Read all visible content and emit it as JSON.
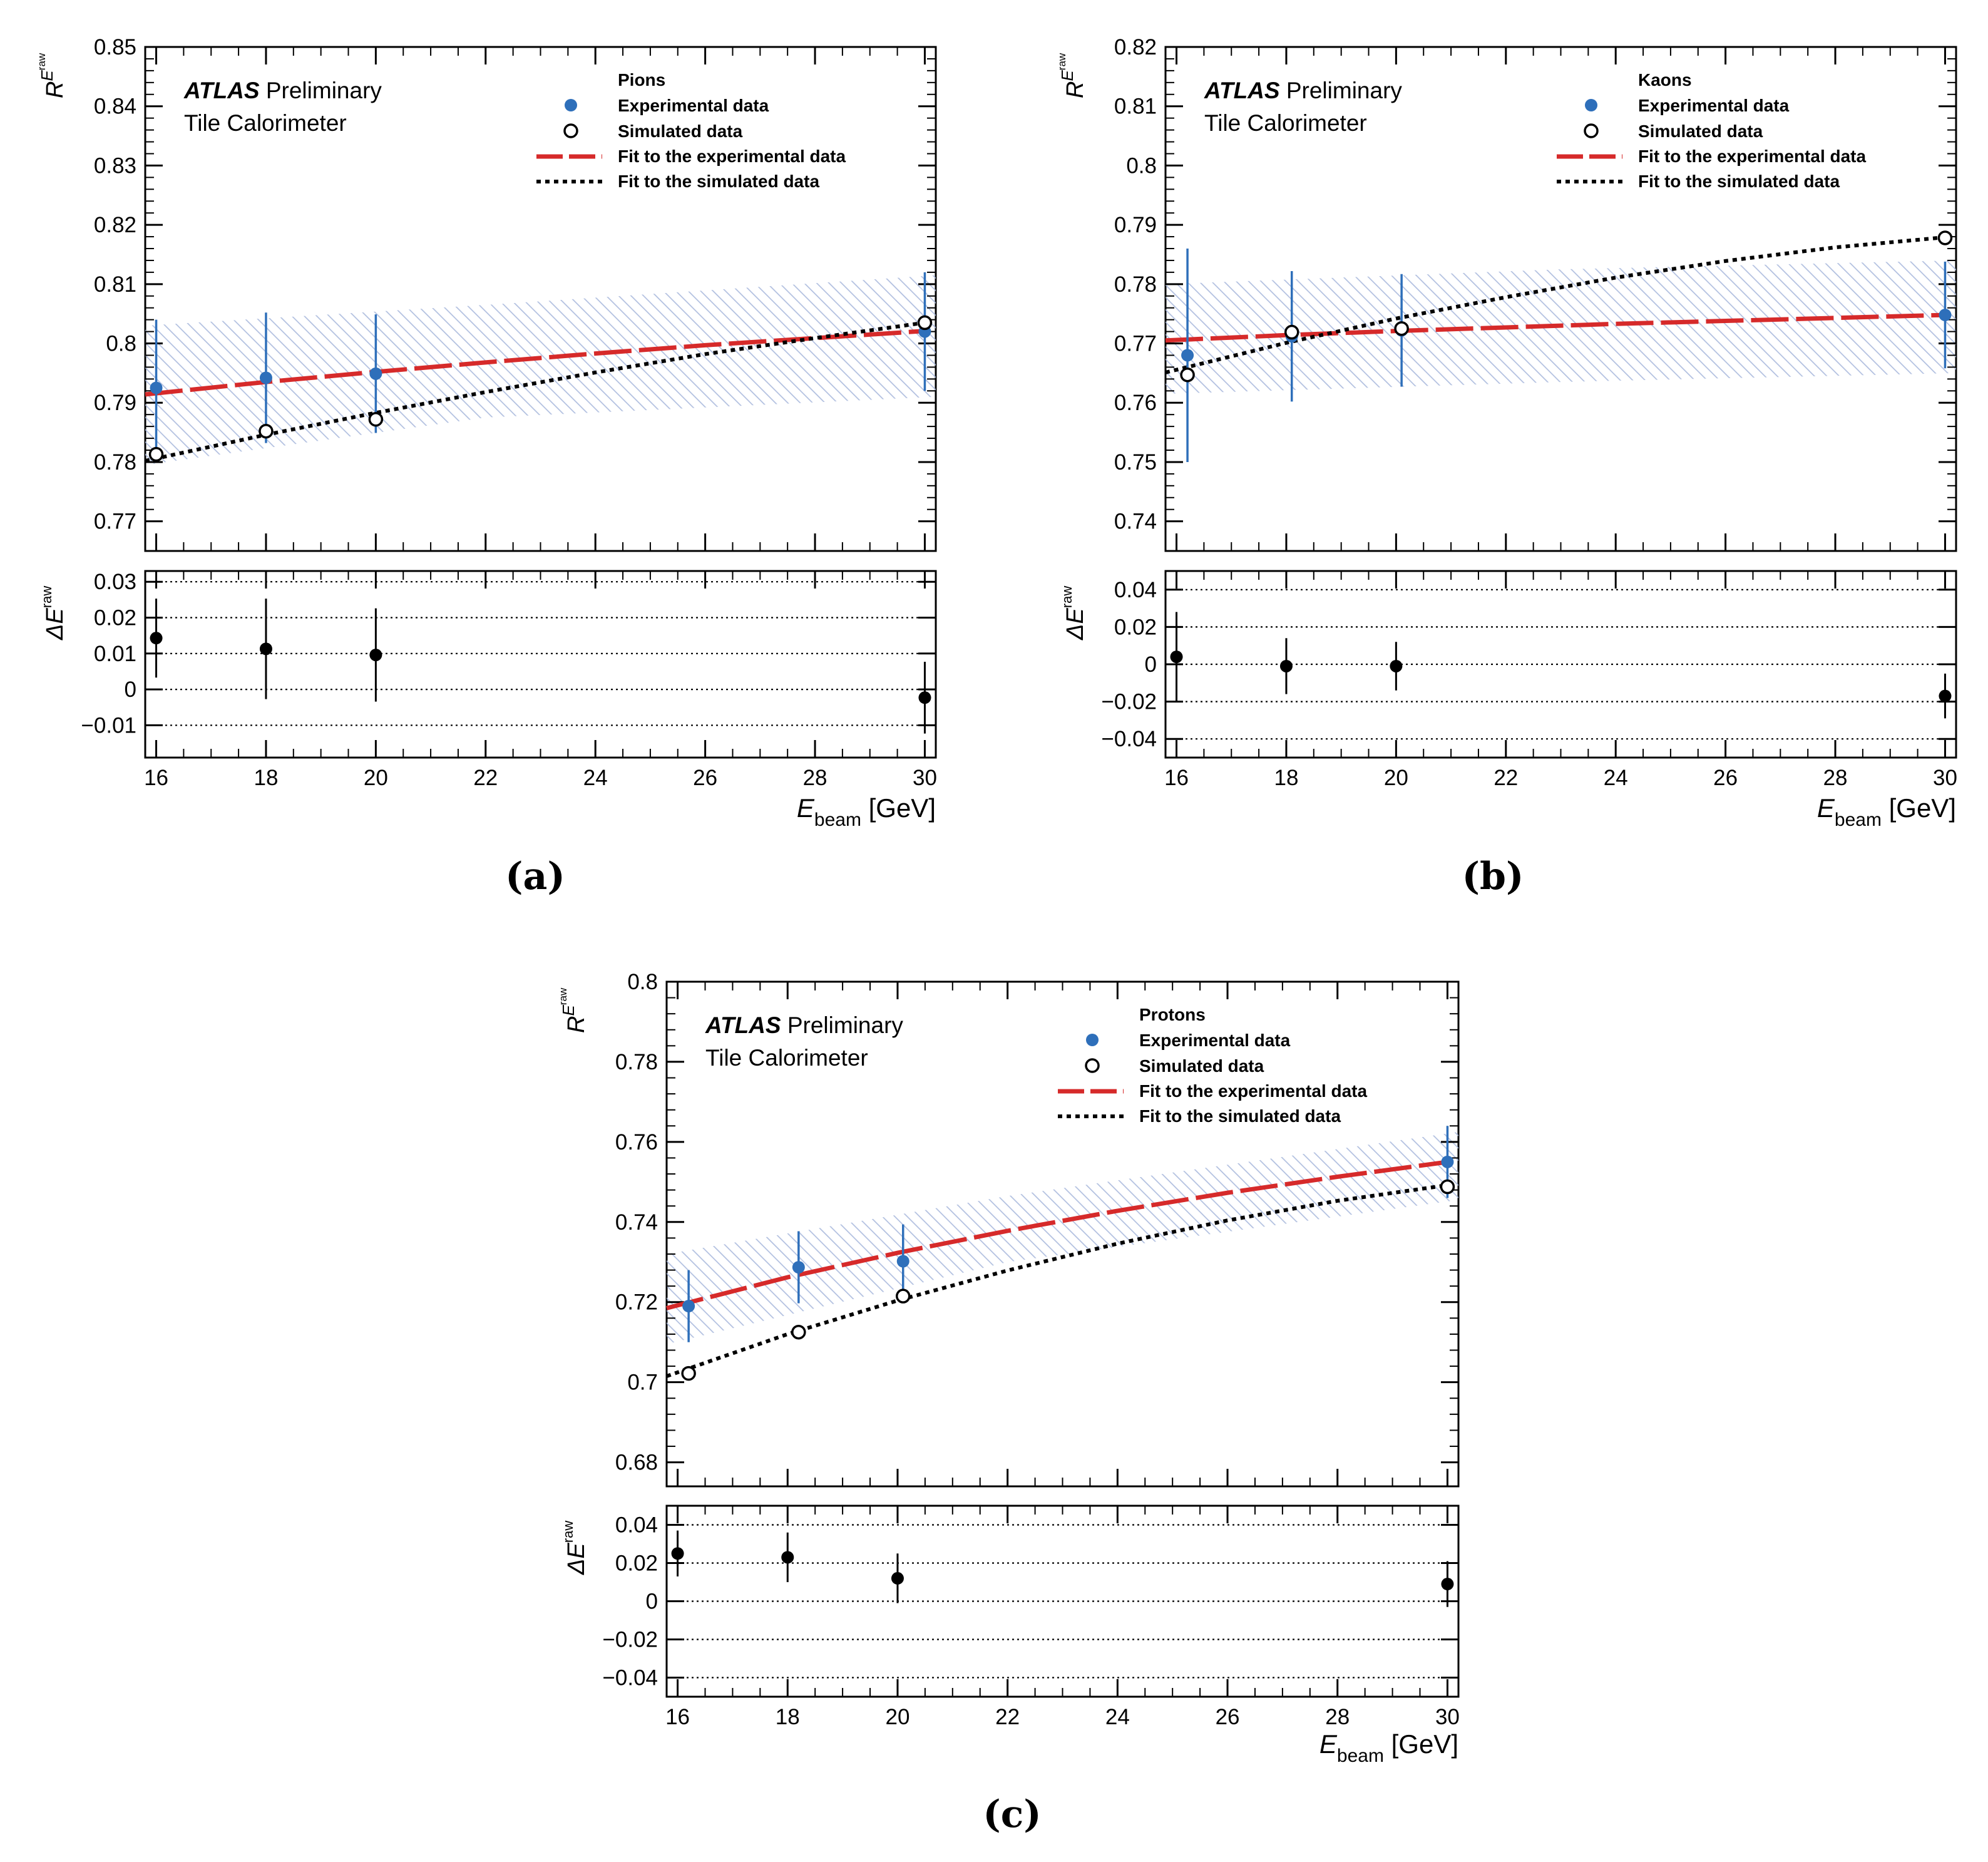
{
  "figure": {
    "legend_entries": {
      "exp": "Experimental data",
      "sim": "Simulated data",
      "fit_exp": "Fit to the experimental data",
      "fit_sim": "Fit to the simulated data"
    },
    "atlas_bold": "ATLAS",
    "atlas_rest": "Preliminary",
    "subtitle": "Tile Calorimeter",
    "ylabel_main": {
      "base": "R",
      "sup": "E",
      "supsup": "raw"
    },
    "ylabel_ratio": {
      "base": "ΔE",
      "sup": "raw"
    },
    "xlabel": {
      "base": "E",
      "sub": "beam",
      "unit": "[GeV]"
    },
    "colors": {
      "exp": "#2e6fba",
      "fit_exp": "#d62a2a",
      "sim": "#000000",
      "band": "#9aaed6",
      "ratio": "#000000"
    }
  },
  "chart_data": [
    {
      "type": "scatter",
      "panel": "(a)",
      "particle": "Pions",
      "xlim": [
        15.8,
        30.2
      ],
      "xticks": [
        16,
        18,
        20,
        22,
        24,
        26,
        28,
        30
      ],
      "main": {
        "ylim": [
          0.765,
          0.85
        ],
        "yticks": [
          0.77,
          0.78,
          0.79,
          0.8,
          0.81,
          0.82,
          0.83,
          0.84,
          0.85
        ],
        "yticklabels": [
          "0.77",
          "0.78",
          "0.79",
          "0.8",
          "0.81",
          "0.82",
          "0.83",
          "0.84",
          "0.85"
        ],
        "experimental": [
          {
            "x": 16.0,
            "y": 0.7925,
            "err": 0.0115
          },
          {
            "x": 18.0,
            "y": 0.7942,
            "err": 0.011
          },
          {
            "x": 20.0,
            "y": 0.7949,
            "err": 0.01
          },
          {
            "x": 30.0,
            "y": 0.802,
            "err": 0.01
          }
        ],
        "simulated": [
          {
            "x": 16.0,
            "y": 0.7813
          },
          {
            "x": 18.0,
            "y": 0.7852
          },
          {
            "x": 20.0,
            "y": 0.7872
          },
          {
            "x": 30.0,
            "y": 0.8035
          }
        ],
        "fit_experimental": [
          [
            15.8,
            0.7914
          ],
          [
            18,
            0.7935
          ],
          [
            20,
            0.7952
          ],
          [
            22,
            0.7968
          ],
          [
            24,
            0.7983
          ],
          [
            26,
            0.7997
          ],
          [
            28,
            0.8009
          ],
          [
            30,
            0.8021
          ]
        ],
        "fit_simulated": [
          [
            15.8,
            0.7802
          ],
          [
            18,
            0.7846
          ],
          [
            20,
            0.7883
          ],
          [
            22,
            0.7918
          ],
          [
            24,
            0.7951
          ],
          [
            26,
            0.7982
          ],
          [
            28,
            0.8009
          ],
          [
            30,
            0.8035
          ]
        ],
        "band": [
          [
            15.8,
            0.7795,
            0.803
          ],
          [
            22,
            0.7875,
            0.8065
          ],
          [
            30.2,
            0.791,
            0.8115
          ]
        ]
      },
      "ratio": {
        "ylim": [
          -0.019,
          0.033
        ],
        "yticks": [
          -0.01,
          0,
          0.01,
          0.02,
          0.03
        ],
        "yticklabels": [
          "−0.01",
          "0",
          "0.01",
          "0.02",
          "0.03"
        ],
        "gridlines": [
          -0.01,
          0,
          0.01,
          0.02,
          0.03
        ],
        "points": [
          {
            "x": 16.0,
            "y": 0.0143,
            "err": 0.011
          },
          {
            "x": 18.0,
            "y": 0.0113,
            "err": 0.014
          },
          {
            "x": 20.0,
            "y": 0.0096,
            "err": 0.013
          },
          {
            "x": 30.0,
            "y": -0.0023,
            "err": 0.01
          }
        ]
      }
    },
    {
      "type": "scatter",
      "panel": "(b)",
      "particle": "Kaons",
      "xlim": [
        15.8,
        30.2
      ],
      "xticks": [
        16,
        18,
        20,
        22,
        24,
        26,
        28,
        30
      ],
      "main": {
        "ylim": [
          0.735,
          0.82
        ],
        "yticks": [
          0.74,
          0.75,
          0.76,
          0.77,
          0.78,
          0.79,
          0.8,
          0.81,
          0.82
        ],
        "yticklabels": [
          "0.74",
          "0.75",
          "0.76",
          "0.77",
          "0.78",
          "0.79",
          "0.8",
          "0.81",
          "0.82"
        ],
        "experimental": [
          {
            "x": 16.2,
            "y": 0.768,
            "err": 0.018
          },
          {
            "x": 18.1,
            "y": 0.7712,
            "err": 0.011
          },
          {
            "x": 20.1,
            "y": 0.7722,
            "err": 0.0095
          },
          {
            "x": 30.0,
            "y": 0.7748,
            "err": 0.009
          }
        ],
        "simulated": [
          {
            "x": 16.2,
            "y": 0.7647
          },
          {
            "x": 18.1,
            "y": 0.7719
          },
          {
            "x": 20.1,
            "y": 0.7725
          },
          {
            "x": 30.0,
            "y": 0.7878
          }
        ],
        "fit_experimental": [
          [
            15.8,
            0.7705
          ],
          [
            18,
            0.7714
          ],
          [
            20,
            0.7721
          ],
          [
            22,
            0.7727
          ],
          [
            24,
            0.7733
          ],
          [
            26,
            0.7738
          ],
          [
            28,
            0.7743
          ],
          [
            30,
            0.7748
          ]
        ],
        "fit_simulated": [
          [
            15.8,
            0.7651
          ],
          [
            18,
            0.7701
          ],
          [
            20,
            0.7742
          ],
          [
            22,
            0.7778
          ],
          [
            24,
            0.7811
          ],
          [
            26,
            0.7839
          ],
          [
            28,
            0.7862
          ],
          [
            30,
            0.7879
          ]
        ],
        "band": [
          [
            15.8,
            0.7615,
            0.78
          ],
          [
            23,
            0.7635,
            0.7825
          ],
          [
            30.2,
            0.765,
            0.784
          ]
        ]
      },
      "ratio": {
        "ylim": [
          -0.05,
          0.05
        ],
        "yticks": [
          -0.04,
          -0.02,
          0,
          0.02,
          0.04
        ],
        "yticklabels": [
          "−0.04",
          "−0.02",
          "0",
          "0.02",
          "0.04"
        ],
        "gridlines": [
          -0.04,
          -0.02,
          0,
          0.02,
          0.04
        ],
        "points": [
          {
            "x": 16.0,
            "y": 0.004,
            "err": 0.024
          },
          {
            "x": 18.0,
            "y": -0.001,
            "err": 0.015
          },
          {
            "x": 20.0,
            "y": -0.001,
            "err": 0.013
          },
          {
            "x": 30.0,
            "y": -0.017,
            "err": 0.012
          }
        ]
      }
    },
    {
      "type": "scatter",
      "panel": "(c)",
      "particle": "Protons",
      "xlim": [
        15.8,
        30.2
      ],
      "xticks": [
        16,
        18,
        20,
        22,
        24,
        26,
        28,
        30
      ],
      "main": {
        "ylim": [
          0.674,
          0.8
        ],
        "yticks": [
          0.68,
          0.7,
          0.72,
          0.74,
          0.76,
          0.78,
          0.8
        ],
        "yticklabels": [
          "0.68",
          "0.7",
          "0.72",
          "0.74",
          "0.76",
          "0.78",
          "0.8"
        ],
        "experimental": [
          {
            "x": 16.2,
            "y": 0.719,
            "err": 0.009
          },
          {
            "x": 18.2,
            "y": 0.7287,
            "err": 0.009
          },
          {
            "x": 20.1,
            "y": 0.7302,
            "err": 0.0092
          },
          {
            "x": 30.0,
            "y": 0.755,
            "err": 0.009
          }
        ],
        "simulated": [
          {
            "x": 16.2,
            "y": 0.7022
          },
          {
            "x": 18.2,
            "y": 0.7125
          },
          {
            "x": 20.1,
            "y": 0.7215
          },
          {
            "x": 30.0,
            "y": 0.7488
          }
        ],
        "fit_experimental": [
          [
            15.8,
            0.7185
          ],
          [
            18,
            0.7262
          ],
          [
            20,
            0.7323
          ],
          [
            22,
            0.7378
          ],
          [
            24,
            0.7428
          ],
          [
            26,
            0.7473
          ],
          [
            28,
            0.7513
          ],
          [
            30,
            0.755
          ]
        ],
        "fit_simulated": [
          [
            15.8,
            0.7015
          ],
          [
            18,
            0.712
          ],
          [
            20,
            0.7204
          ],
          [
            22,
            0.7279
          ],
          [
            24,
            0.7346
          ],
          [
            26,
            0.7404
          ],
          [
            28,
            0.7453
          ],
          [
            30,
            0.7492
          ]
        ],
        "band": [
          [
            15.8,
            0.7095,
            0.732
          ],
          [
            22,
            0.73,
            0.7465
          ],
          [
            30.2,
            0.7455,
            0.7625
          ]
        ]
      },
      "ratio": {
        "ylim": [
          -0.05,
          0.05
        ],
        "yticks": [
          -0.04,
          -0.02,
          0,
          0.02,
          0.04
        ],
        "yticklabels": [
          "−0.04",
          "−0.02",
          "0",
          "0.02",
          "0.04"
        ],
        "gridlines": [
          -0.04,
          -0.02,
          0,
          0.02,
          0.04
        ],
        "points": [
          {
            "x": 16.0,
            "y": 0.025,
            "err": 0.012
          },
          {
            "x": 18.0,
            "y": 0.023,
            "err": 0.013
          },
          {
            "x": 20.0,
            "y": 0.012,
            "err": 0.013
          },
          {
            "x": 30.0,
            "y": 0.009,
            "err": 0.012
          }
        ]
      }
    }
  ]
}
